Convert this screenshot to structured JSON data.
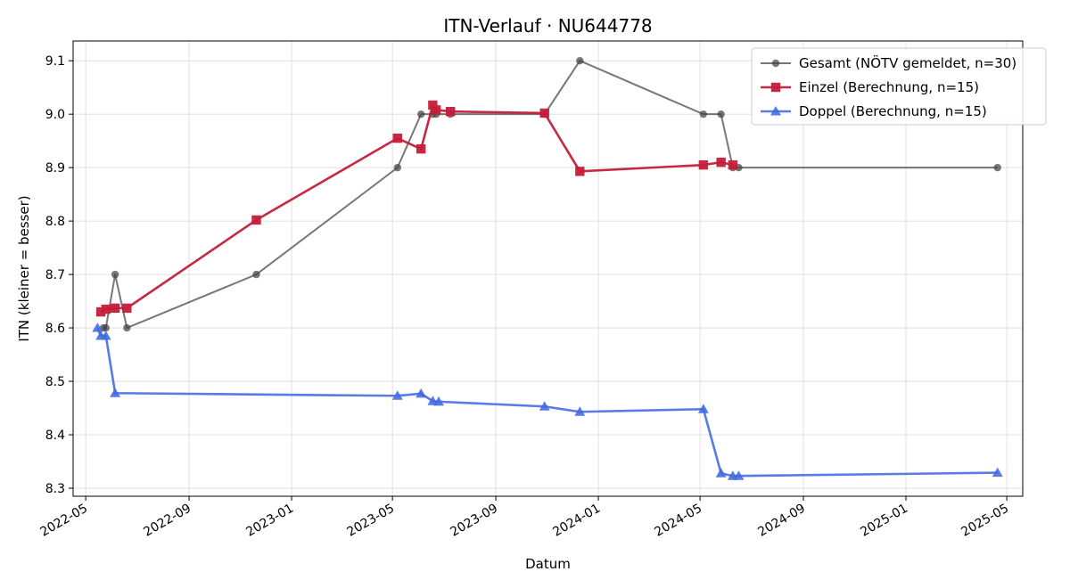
{
  "chart_data": {
    "type": "line",
    "title": "ITN-Verlauf · NU644778",
    "xlabel": "Datum",
    "ylabel": "ITN  (kleiner = besser)",
    "x_type": "date",
    "xlim": [
      "2022-04-16",
      "2025-05-20"
    ],
    "ylim": [
      8.285,
      9.137
    ],
    "x_ticks": [
      "2022-05-01",
      "2022-09-01",
      "2023-01-01",
      "2023-05-01",
      "2023-09-01",
      "2024-01-01",
      "2024-05-01",
      "2024-09-01",
      "2025-01-01",
      "2025-05-01"
    ],
    "x_tick_labels": [
      "2022-05",
      "2022-09",
      "2023-01",
      "2023-05",
      "2023-09",
      "2024-01",
      "2024-05",
      "2024-09",
      "2025-01",
      "2025-05"
    ],
    "y_ticks": [
      8.3,
      8.4,
      8.5,
      8.6,
      8.7,
      8.8,
      8.9,
      9.0,
      9.1
    ],
    "y_tick_labels": [
      "8.3",
      "8.4",
      "8.5",
      "8.6",
      "8.7",
      "8.8",
      "8.9",
      "9.0",
      "9.1"
    ],
    "grid": true,
    "legend_position": "top-right",
    "series": [
      {
        "name": "Gesamt (NÖTV gemeldet, n=30)",
        "color": "#444444",
        "marker": "circle",
        "opacity": 0.72,
        "points": [
          {
            "x": "2022-05-22",
            "y": 8.6
          },
          {
            "x": "2022-05-25",
            "y": 8.6
          },
          {
            "x": "2022-06-05",
            "y": 8.7
          },
          {
            "x": "2022-06-19",
            "y": 8.6
          },
          {
            "x": "2022-11-20",
            "y": 8.7
          },
          {
            "x": "2023-05-07",
            "y": 8.9
          },
          {
            "x": "2023-06-04",
            "y": 9.0
          },
          {
            "x": "2023-06-18",
            "y": 9.0
          },
          {
            "x": "2023-06-22",
            "y": 9.0
          },
          {
            "x": "2023-07-09",
            "y": 9.0
          },
          {
            "x": "2023-10-29",
            "y": 9.0
          },
          {
            "x": "2023-12-10",
            "y": 9.1
          },
          {
            "x": "2024-05-05",
            "y": 9.0
          },
          {
            "x": "2024-05-26",
            "y": 9.0
          },
          {
            "x": "2024-06-09",
            "y": 8.9
          },
          {
            "x": "2024-06-16",
            "y": 8.9
          },
          {
            "x": "2025-04-20",
            "y": 8.9
          }
        ]
      },
      {
        "name": "Einzel (Berechnung, n=15)",
        "color": "#c41e3a",
        "marker": "square",
        "opacity": 0.95,
        "points": [
          {
            "x": "2022-05-19",
            "y": 8.63
          },
          {
            "x": "2022-05-25",
            "y": 8.635
          },
          {
            "x": "2022-06-05",
            "y": 8.637
          },
          {
            "x": "2022-06-19",
            "y": 8.637
          },
          {
            "x": "2022-11-20",
            "y": 8.802
          },
          {
            "x": "2023-05-07",
            "y": 8.955
          },
          {
            "x": "2023-06-04",
            "y": 8.935
          },
          {
            "x": "2023-06-18",
            "y": 9.017
          },
          {
            "x": "2023-06-22",
            "y": 9.008
          },
          {
            "x": "2023-07-09",
            "y": 9.005
          },
          {
            "x": "2023-10-29",
            "y": 9.002
          },
          {
            "x": "2023-12-10",
            "y": 8.893
          },
          {
            "x": "2024-05-05",
            "y": 8.905
          },
          {
            "x": "2024-05-26",
            "y": 8.91
          },
          {
            "x": "2024-06-09",
            "y": 8.905
          }
        ]
      },
      {
        "name": "Doppel (Berechnung, n=15)",
        "color": "#4169e1",
        "marker": "triangle",
        "opacity": 0.88,
        "points": [
          {
            "x": "2022-05-15",
            "y": 8.6
          },
          {
            "x": "2022-05-19",
            "y": 8.585
          },
          {
            "x": "2022-05-25",
            "y": 8.585
          },
          {
            "x": "2022-06-05",
            "y": 8.478
          },
          {
            "x": "2023-05-07",
            "y": 8.473
          },
          {
            "x": "2023-06-04",
            "y": 8.477
          },
          {
            "x": "2023-06-18",
            "y": 8.463
          },
          {
            "x": "2023-06-25",
            "y": 8.462
          },
          {
            "x": "2023-10-29",
            "y": 8.453
          },
          {
            "x": "2023-12-10",
            "y": 8.443
          },
          {
            "x": "2024-05-05",
            "y": 8.448
          },
          {
            "x": "2024-05-26",
            "y": 8.328
          },
          {
            "x": "2024-06-09",
            "y": 8.323
          },
          {
            "x": "2024-06-16",
            "y": 8.323
          },
          {
            "x": "2025-04-20",
            "y": 8.329
          }
        ]
      }
    ]
  }
}
